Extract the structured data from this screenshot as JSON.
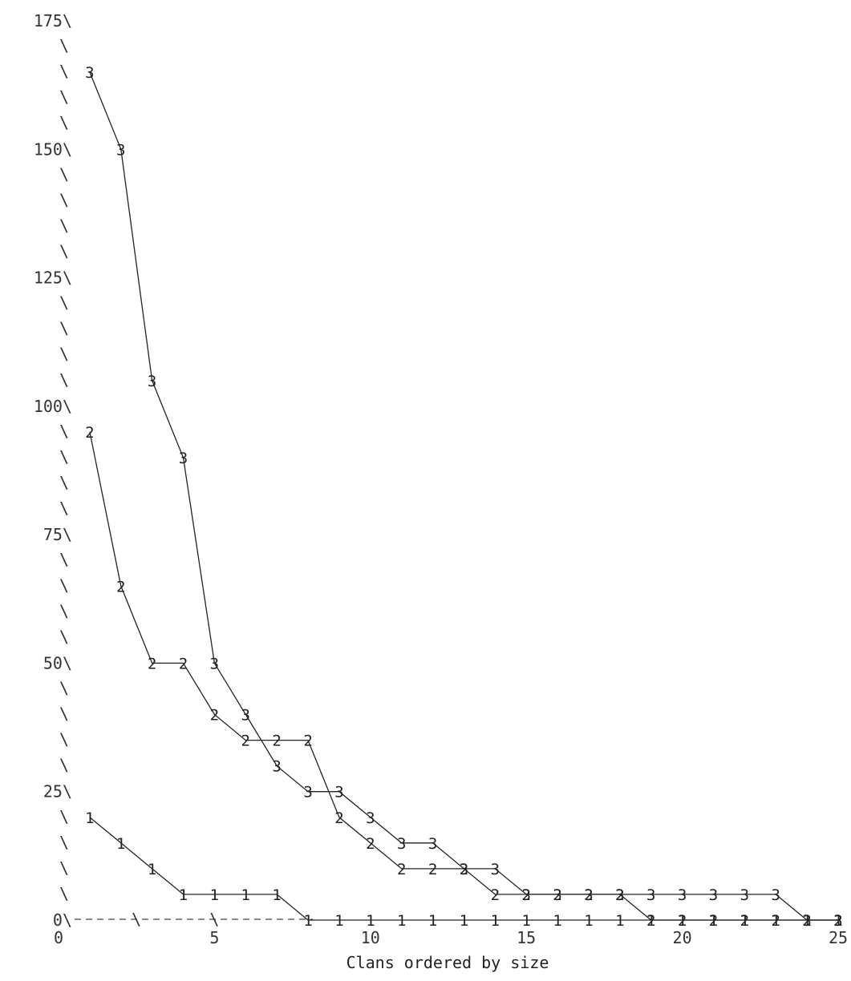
{
  "chart_data": {
    "type": "line",
    "title": "",
    "xlabel": "Clans ordered by size",
    "ylabel": "",
    "xlim": [
      0,
      25
    ],
    "ylim": [
      0,
      175
    ],
    "xticks": [
      0,
      5,
      10,
      15,
      20,
      25
    ],
    "yticks": [
      0,
      25,
      50,
      75,
      100,
      125,
      150,
      175
    ],
    "xtick_labels": [
      "0",
      "5",
      "10",
      "15",
      "20",
      "25"
    ],
    "ytick_labels": [
      "0\\",
      "25\\",
      "50\\",
      "75\\",
      "100\\",
      "125\\",
      "150\\",
      "175\\"
    ],
    "y_axis_glyph": "\\",
    "x_axis_glyph": "\\",
    "grid": false,
    "marker_style": "series number drawn as point marker",
    "series": [
      {
        "marker": "1",
        "x": [
          1,
          2,
          3,
          4,
          5,
          6,
          7,
          8,
          9,
          10,
          11,
          12,
          13,
          14,
          15,
          16,
          17,
          18,
          19,
          20,
          21,
          22,
          23,
          24,
          25
        ],
        "y": [
          20,
          15,
          10,
          5,
          5,
          5,
          5,
          0,
          0,
          0,
          0,
          0,
          0,
          0,
          0,
          0,
          0,
          0,
          0,
          0,
          0,
          0,
          0,
          0,
          0
        ]
      },
      {
        "marker": "2",
        "x": [
          1,
          2,
          3,
          4,
          5,
          6,
          7,
          8,
          9,
          10,
          11,
          12,
          13,
          14,
          15,
          16,
          17,
          18,
          19,
          20,
          21,
          22,
          23,
          24,
          25
        ],
        "y": [
          95,
          65,
          50,
          50,
          40,
          35,
          35,
          35,
          20,
          15,
          10,
          10,
          10,
          5,
          5,
          5,
          5,
          5,
          0,
          0,
          0,
          0,
          0,
          0,
          0
        ]
      },
      {
        "marker": "3",
        "x": [
          1,
          2,
          3,
          4,
          5,
          6,
          7,
          8,
          9,
          10,
          11,
          12,
          13,
          14,
          15,
          16,
          17,
          18,
          19,
          20,
          21,
          22,
          23,
          24,
          25
        ],
        "y": [
          165,
          150,
          105,
          90,
          50,
          40,
          30,
          25,
          25,
          20,
          15,
          15,
          10,
          10,
          5,
          5,
          5,
          5,
          5,
          5,
          5,
          5,
          5,
          0,
          0
        ]
      }
    ]
  }
}
